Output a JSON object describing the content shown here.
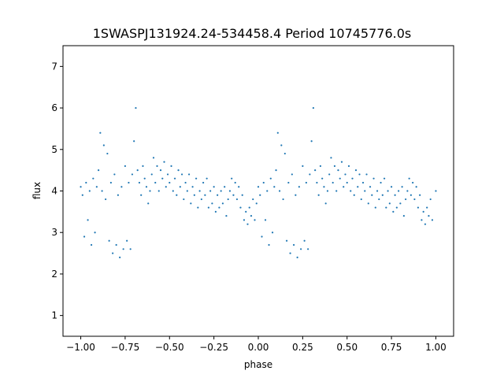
{
  "chart_data": {
    "type": "scatter",
    "title": "1SWASPJ131924.24-534458.4 Period 10745776.0s",
    "xlabel": "phase",
    "ylabel": "flux",
    "xlim": [
      -1.1,
      1.1
    ],
    "ylim": [
      0.5,
      7.5
    ],
    "xticks": [
      -1.0,
      -0.75,
      -0.5,
      -0.25,
      0.0,
      0.25,
      0.5,
      0.75,
      1.0
    ],
    "xtick_labels": [
      "−1.00",
      "−0.75",
      "−0.50",
      "−0.25",
      "0.00",
      "0.25",
      "0.50",
      "0.75",
      "1.00"
    ],
    "yticks": [
      1,
      2,
      3,
      4,
      5,
      6,
      7
    ],
    "ytick_labels": [
      "1",
      "2",
      "3",
      "4",
      "5",
      "6",
      "7"
    ],
    "grid": false,
    "marker_color": "#1f77b4",
    "series": [
      {
        "points": [
          [
            -1.0,
            4.1
          ],
          [
            -0.99,
            3.9
          ],
          [
            -0.98,
            2.9
          ],
          [
            -0.97,
            4.2
          ],
          [
            -0.96,
            3.3
          ],
          [
            -0.95,
            4.0
          ],
          [
            -0.94,
            2.7
          ],
          [
            -0.93,
            4.3
          ],
          [
            -0.92,
            3.0
          ],
          [
            -0.91,
            4.1
          ],
          [
            -0.9,
            4.5
          ],
          [
            -0.89,
            5.4
          ],
          [
            -0.88,
            4.0
          ],
          [
            -0.87,
            5.1
          ],
          [
            -0.86,
            3.8
          ],
          [
            -0.85,
            4.9
          ],
          [
            -0.84,
            2.8
          ],
          [
            -0.83,
            4.2
          ],
          [
            -0.82,
            2.5
          ],
          [
            -0.81,
            4.4
          ],
          [
            -0.8,
            2.7
          ],
          [
            -0.79,
            3.9
          ],
          [
            -0.78,
            2.4
          ],
          [
            -0.77,
            4.1
          ],
          [
            -0.76,
            2.6
          ],
          [
            -0.75,
            4.6
          ],
          [
            -0.74,
            2.8
          ],
          [
            -0.73,
            4.2
          ],
          [
            -0.72,
            2.6
          ],
          [
            -0.71,
            4.4
          ],
          [
            -0.7,
            5.2
          ],
          [
            -0.69,
            6.0
          ],
          [
            -0.68,
            4.5
          ],
          [
            -0.67,
            4.2
          ],
          [
            -0.66,
            3.9
          ],
          [
            -0.65,
            4.6
          ],
          [
            -0.64,
            4.3
          ],
          [
            -0.63,
            4.1
          ],
          [
            -0.62,
            3.7
          ],
          [
            -0.61,
            4.0
          ],
          [
            -0.6,
            4.4
          ],
          [
            -0.59,
            4.8
          ],
          [
            -0.58,
            4.2
          ],
          [
            -0.57,
            4.6
          ],
          [
            -0.56,
            4.0
          ],
          [
            -0.55,
            4.5
          ],
          [
            -0.54,
            4.3
          ],
          [
            -0.53,
            4.7
          ],
          [
            -0.52,
            4.1
          ],
          [
            -0.51,
            4.4
          ],
          [
            -0.5,
            4.2
          ],
          [
            -0.49,
            4.6
          ],
          [
            -0.48,
            4.0
          ],
          [
            -0.47,
            4.3
          ],
          [
            -0.46,
            3.9
          ],
          [
            -0.45,
            4.5
          ],
          [
            -0.44,
            4.1
          ],
          [
            -0.43,
            4.4
          ],
          [
            -0.42,
            3.8
          ],
          [
            -0.41,
            4.2
          ],
          [
            -0.4,
            4.0
          ],
          [
            -0.39,
            4.4
          ],
          [
            -0.38,
            3.7
          ],
          [
            -0.37,
            4.1
          ],
          [
            -0.36,
            3.9
          ],
          [
            -0.35,
            4.3
          ],
          [
            -0.34,
            3.6
          ],
          [
            -0.33,
            4.0
          ],
          [
            -0.32,
            3.8
          ],
          [
            -0.31,
            4.2
          ],
          [
            -0.3,
            3.9
          ],
          [
            -0.29,
            4.3
          ],
          [
            -0.28,
            3.6
          ],
          [
            -0.27,
            4.0
          ],
          [
            -0.26,
            3.7
          ],
          [
            -0.25,
            4.1
          ],
          [
            -0.24,
            3.5
          ],
          [
            -0.23,
            3.9
          ],
          [
            -0.22,
            3.6
          ],
          [
            -0.21,
            4.0
          ],
          [
            -0.2,
            3.7
          ],
          [
            -0.19,
            4.1
          ],
          [
            -0.18,
            3.4
          ],
          [
            -0.17,
            3.8
          ],
          [
            -0.16,
            4.0
          ],
          [
            -0.15,
            4.3
          ],
          [
            -0.14,
            3.9
          ],
          [
            -0.13,
            4.2
          ],
          [
            -0.12,
            3.8
          ],
          [
            -0.11,
            4.1
          ],
          [
            -0.1,
            3.6
          ],
          [
            -0.09,
            3.9
          ],
          [
            -0.08,
            3.3
          ],
          [
            -0.07,
            3.5
          ],
          [
            -0.06,
            3.2
          ],
          [
            -0.05,
            3.6
          ],
          [
            -0.04,
            3.4
          ],
          [
            -0.03,
            3.8
          ],
          [
            -0.02,
            3.3
          ],
          [
            -0.01,
            3.7
          ],
          [
            0.0,
            4.1
          ],
          [
            0.01,
            3.9
          ],
          [
            0.02,
            2.9
          ],
          [
            0.03,
            4.2
          ],
          [
            0.04,
            3.3
          ],
          [
            0.05,
            4.0
          ],
          [
            0.06,
            2.7
          ],
          [
            0.07,
            4.3
          ],
          [
            0.08,
            3.0
          ],
          [
            0.09,
            4.1
          ],
          [
            0.1,
            4.5
          ],
          [
            0.11,
            5.4
          ],
          [
            0.12,
            4.0
          ],
          [
            0.13,
            5.1
          ],
          [
            0.14,
            3.8
          ],
          [
            0.15,
            4.9
          ],
          [
            0.16,
            2.8
          ],
          [
            0.17,
            4.2
          ],
          [
            0.18,
            2.5
          ],
          [
            0.19,
            4.4
          ],
          [
            0.2,
            2.7
          ],
          [
            0.21,
            3.9
          ],
          [
            0.22,
            2.4
          ],
          [
            0.23,
            4.1
          ],
          [
            0.24,
            2.6
          ],
          [
            0.25,
            4.6
          ],
          [
            0.26,
            2.8
          ],
          [
            0.27,
            4.2
          ],
          [
            0.28,
            2.6
          ],
          [
            0.29,
            4.4
          ],
          [
            0.3,
            5.2
          ],
          [
            0.31,
            6.0
          ],
          [
            0.32,
            4.5
          ],
          [
            0.33,
            4.2
          ],
          [
            0.34,
            3.9
          ],
          [
            0.35,
            4.6
          ],
          [
            0.36,
            4.3
          ],
          [
            0.37,
            4.1
          ],
          [
            0.38,
            3.7
          ],
          [
            0.39,
            4.0
          ],
          [
            0.4,
            4.4
          ],
          [
            0.41,
            4.8
          ],
          [
            0.42,
            4.2
          ],
          [
            0.43,
            4.6
          ],
          [
            0.44,
            4.0
          ],
          [
            0.45,
            4.5
          ],
          [
            0.46,
            4.3
          ],
          [
            0.47,
            4.7
          ],
          [
            0.48,
            4.1
          ],
          [
            0.49,
            4.4
          ],
          [
            0.5,
            4.2
          ],
          [
            0.51,
            4.6
          ],
          [
            0.52,
            4.0
          ],
          [
            0.53,
            4.3
          ],
          [
            0.54,
            3.9
          ],
          [
            0.55,
            4.5
          ],
          [
            0.56,
            4.1
          ],
          [
            0.57,
            4.4
          ],
          [
            0.58,
            3.8
          ],
          [
            0.59,
            4.2
          ],
          [
            0.6,
            4.0
          ],
          [
            0.61,
            4.4
          ],
          [
            0.62,
            3.7
          ],
          [
            0.63,
            4.1
          ],
          [
            0.64,
            3.9
          ],
          [
            0.65,
            4.3
          ],
          [
            0.66,
            3.6
          ],
          [
            0.67,
            4.0
          ],
          [
            0.68,
            3.8
          ],
          [
            0.69,
            4.2
          ],
          [
            0.7,
            3.9
          ],
          [
            0.71,
            4.3
          ],
          [
            0.72,
            3.6
          ],
          [
            0.73,
            4.0
          ],
          [
            0.74,
            3.7
          ],
          [
            0.75,
            4.1
          ],
          [
            0.76,
            3.5
          ],
          [
            0.77,
            3.9
          ],
          [
            0.78,
            3.6
          ],
          [
            0.79,
            4.0
          ],
          [
            0.8,
            3.7
          ],
          [
            0.81,
            4.1
          ],
          [
            0.82,
            3.4
          ],
          [
            0.83,
            3.8
          ],
          [
            0.84,
            4.0
          ],
          [
            0.85,
            4.3
          ],
          [
            0.86,
            3.9
          ],
          [
            0.87,
            4.2
          ],
          [
            0.88,
            3.8
          ],
          [
            0.89,
            4.1
          ],
          [
            0.9,
            3.6
          ],
          [
            0.91,
            3.9
          ],
          [
            0.92,
            3.3
          ],
          [
            0.93,
            3.5
          ],
          [
            0.94,
            3.2
          ],
          [
            0.95,
            3.6
          ],
          [
            0.96,
            3.4
          ],
          [
            0.97,
            3.8
          ],
          [
            0.98,
            3.3
          ],
          [
            1.0,
            4.0
          ]
        ]
      }
    ]
  }
}
